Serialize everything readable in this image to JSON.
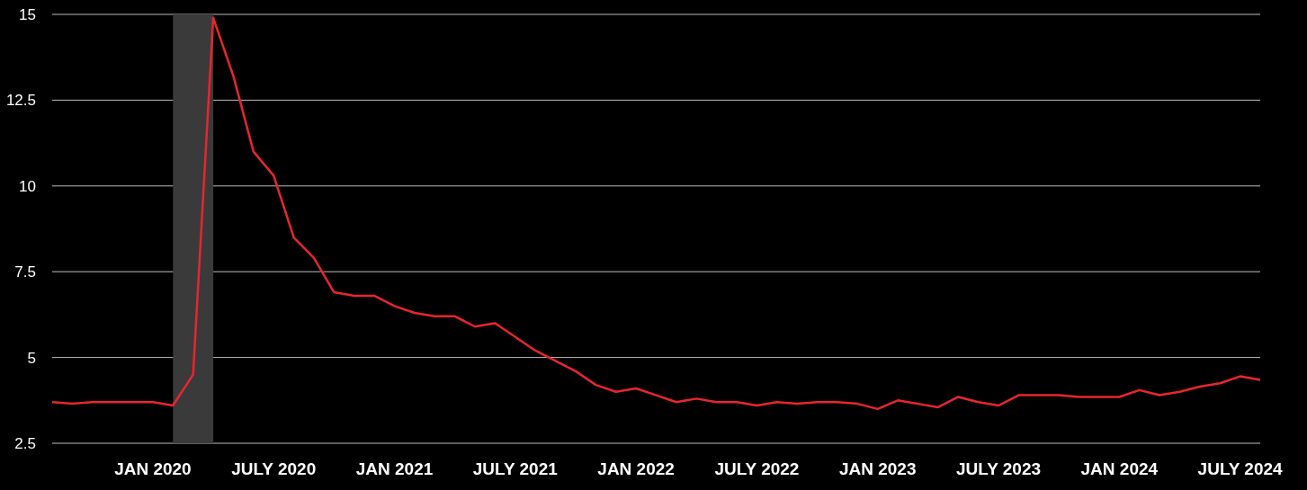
{
  "chart_data": {
    "type": "line",
    "x": [
      "2019-08",
      "2019-09",
      "2019-10",
      "2019-11",
      "2019-12",
      "2020-01",
      "2020-02",
      "2020-03",
      "2020-04",
      "2020-05",
      "2020-06",
      "2020-07",
      "2020-08",
      "2020-09",
      "2020-10",
      "2020-11",
      "2020-12",
      "2021-01",
      "2021-02",
      "2021-03",
      "2021-04",
      "2021-05",
      "2021-06",
      "2021-07",
      "2021-08",
      "2021-09",
      "2021-10",
      "2021-11",
      "2021-12",
      "2022-01",
      "2022-02",
      "2022-03",
      "2022-04",
      "2022-05",
      "2022-06",
      "2022-07",
      "2022-08",
      "2022-09",
      "2022-10",
      "2022-11",
      "2022-12",
      "2023-01",
      "2023-02",
      "2023-03",
      "2023-04",
      "2023-05",
      "2023-06",
      "2023-07",
      "2023-08",
      "2023-09",
      "2023-10",
      "2023-11",
      "2023-12",
      "2024-01",
      "2024-02",
      "2024-03",
      "2024-04",
      "2024-05",
      "2024-06",
      "2024-07",
      "2024-08"
    ],
    "values": [
      3.7,
      3.65,
      3.7,
      3.7,
      3.7,
      3.7,
      3.6,
      4.5,
      14.9,
      13.2,
      11.0,
      10.3,
      8.5,
      7.9,
      6.9,
      6.8,
      6.8,
      6.5,
      6.3,
      6.2,
      6.2,
      5.9,
      6.0,
      5.6,
      5.2,
      4.9,
      4.6,
      4.2,
      4.0,
      4.1,
      3.9,
      3.7,
      3.8,
      3.7,
      3.7,
      3.6,
      3.7,
      3.65,
      3.7,
      3.7,
      3.65,
      3.5,
      3.75,
      3.65,
      3.55,
      3.85,
      3.7,
      3.6,
      3.9,
      3.9,
      3.9,
      3.85,
      3.85,
      3.85,
      4.05,
      3.9,
      4.0,
      4.15,
      4.25,
      4.45,
      4.35
    ],
    "color": "#e8262e",
    "xlim": [
      "2019-08",
      "2024-08"
    ],
    "xticks": [
      {
        "value": "2020-01",
        "label": "JAN 2020"
      },
      {
        "value": "2020-07",
        "label": "JULY 2020"
      },
      {
        "value": "2021-01",
        "label": "JAN 2021"
      },
      {
        "value": "2021-07",
        "label": "JULY 2021"
      },
      {
        "value": "2022-01",
        "label": "JAN 2022"
      },
      {
        "value": "2022-07",
        "label": "JULY 2022"
      },
      {
        "value": "2023-01",
        "label": "JAN 2023"
      },
      {
        "value": "2023-07",
        "label": "JULY 2023"
      },
      {
        "value": "2024-01",
        "label": "JAN 2024"
      },
      {
        "value": "2024-07",
        "label": "JULY 2024"
      }
    ],
    "ylim": [
      2.5,
      15
    ],
    "yticks": [
      2.5,
      5,
      7.5,
      10,
      12.5,
      15
    ],
    "grid": "y",
    "bands": [
      {
        "axis": "x",
        "from": "2020-02",
        "to": "2020-04",
        "color": "#3a3a3a"
      }
    ]
  }
}
